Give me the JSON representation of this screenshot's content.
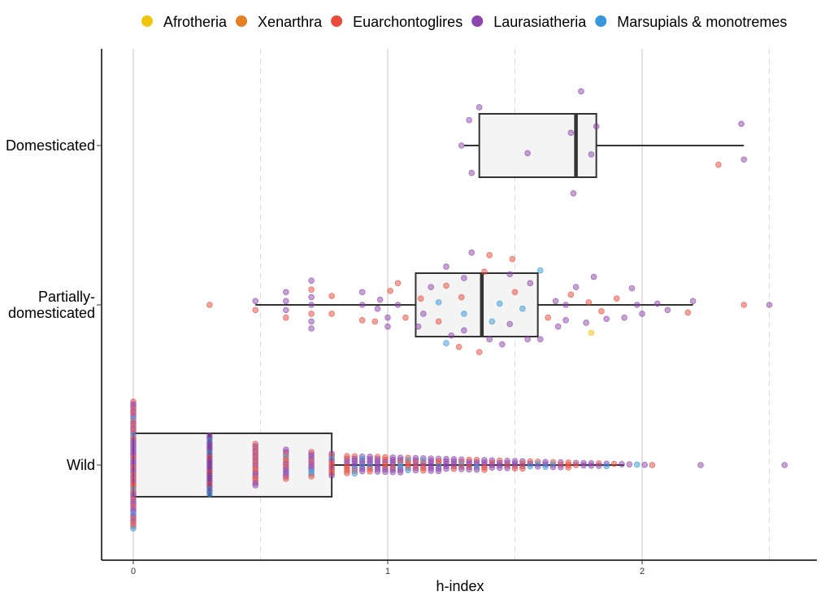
{
  "chart_data": {
    "type": "boxplot-jitter",
    "xlabel": "h-index",
    "ylabel": "",
    "xlim": [
      -0.13,
      2.7
    ],
    "x_ticks": [
      0,
      1,
      2
    ],
    "x_minor_ticks": [
      0.5,
      1.5,
      2.5
    ],
    "grid": true,
    "legend_position": "top",
    "categories": [
      "Domesticated",
      "Partially-\ndomesticated",
      "Wild"
    ],
    "category_lines": [
      [
        "Domesticated"
      ],
      [
        "Partially-",
        "domesticated"
      ],
      [
        "Wild"
      ]
    ],
    "legend": [
      {
        "name": "Afrotheria",
        "color": "#F1C40F"
      },
      {
        "name": "Xenarthra",
        "color": "#E67E22"
      },
      {
        "name": "Euarchontoglires",
        "color": "#E74C3C"
      },
      {
        "name": "Laurasiatheria",
        "color": "#8E44AD"
      },
      {
        "name": "Marsupials & monotremes",
        "color": "#3498DB"
      }
    ],
    "boxes": [
      {
        "category": "Domesticated",
        "whisker_low": 1.3,
        "q1": 1.36,
        "median": 1.74,
        "q3": 1.82,
        "whisker_high": 2.4
      },
      {
        "category": "Partially-\ndomesticated",
        "whisker_low": 0.48,
        "q1": 1.11,
        "median": 1.37,
        "q3": 1.59,
        "whisker_high": 2.2
      },
      {
        "category": "Wild",
        "whisker_low": 0,
        "q1": 0,
        "median": 0.3,
        "q3": 0.78,
        "whisker_high": 1.93
      }
    ],
    "points": [
      {
        "category": "Domesticated",
        "clade": "Laurasiatheria",
        "x": 1.29,
        "j": 0.0
      },
      {
        "category": "Domesticated",
        "clade": "Laurasiatheria",
        "x": 1.33,
        "j": 0.43
      },
      {
        "category": "Domesticated",
        "clade": "Laurasiatheria",
        "x": 1.32,
        "j": -0.4
      },
      {
        "category": "Domesticated",
        "clade": "Laurasiatheria",
        "x": 1.36,
        "j": -0.6
      },
      {
        "category": "Domesticated",
        "clade": "Laurasiatheria",
        "x": 1.55,
        "j": 0.12
      },
      {
        "category": "Domesticated",
        "clade": "Laurasiatheria",
        "x": 1.73,
        "j": 0.75
      },
      {
        "category": "Domesticated",
        "clade": "Laurasiatheria",
        "x": 1.72,
        "j": -0.2
      },
      {
        "category": "Domesticated",
        "clade": "Laurasiatheria",
        "x": 1.8,
        "j": 0.14
      },
      {
        "category": "Domesticated",
        "clade": "Laurasiatheria",
        "x": 1.82,
        "j": -0.3
      },
      {
        "category": "Domesticated",
        "clade": "Laurasiatheria",
        "x": 1.76,
        "j": -0.85
      },
      {
        "category": "Domesticated",
        "clade": "Euarchontoglires",
        "x": 2.3,
        "j": 0.3
      },
      {
        "category": "Domesticated",
        "clade": "Laurasiatheria",
        "x": 2.4,
        "j": 0.22
      },
      {
        "category": "Domesticated",
        "clade": "Laurasiatheria",
        "x": 2.39,
        "j": -0.34
      },
      {
        "category": "Partially-\ndomesticated",
        "clade": "Euarchontoglires",
        "x": 0.3,
        "j": 0.0
      },
      {
        "category": "Partially-\ndomesticated",
        "clade": "Euarchontoglires",
        "x": 0.48,
        "j": 0.08
      },
      {
        "category": "Partially-\ndomesticated",
        "clade": "Laurasiatheria",
        "x": 0.48,
        "j": -0.06
      },
      {
        "category": "Partially-\ndomesticated",
        "clade": "Euarchontoglires",
        "x": 0.6,
        "j": 0.2
      },
      {
        "category": "Partially-\ndomesticated",
        "clade": "Laurasiatheria",
        "x": 0.6,
        "j": 0.08
      },
      {
        "category": "Partially-\ndomesticated",
        "clade": "Laurasiatheria",
        "x": 0.6,
        "j": -0.06
      },
      {
        "category": "Partially-\ndomesticated",
        "clade": "Laurasiatheria",
        "x": 0.6,
        "j": -0.2
      },
      {
        "category": "Partially-\ndomesticated",
        "clade": "Laurasiatheria",
        "x": 0.7,
        "j": 0.37
      },
      {
        "category": "Partially-\ndomesticated",
        "clade": "Laurasiatheria",
        "x": 0.7,
        "j": 0.26
      },
      {
        "category": "Partially-\ndomesticated",
        "clade": "Euarchontoglires",
        "x": 0.7,
        "j": 0.14
      },
      {
        "category": "Partially-\ndomesticated",
        "clade": "Laurasiatheria",
        "x": 0.7,
        "j": 0.0
      },
      {
        "category": "Partially-\ndomesticated",
        "clade": "Laurasiatheria",
        "x": 0.7,
        "j": -0.12
      },
      {
        "category": "Partially-\ndomesticated",
        "clade": "Euarchontoglires",
        "x": 0.7,
        "j": -0.24
      },
      {
        "category": "Partially-\ndomesticated",
        "clade": "Laurasiatheria",
        "x": 0.7,
        "j": -0.38
      },
      {
        "category": "Partially-\ndomesticated",
        "clade": "Euarchontoglires",
        "x": 0.78,
        "j": 0.14
      },
      {
        "category": "Partially-\ndomesticated",
        "clade": "Euarchontoglires",
        "x": 0.78,
        "j": -0.14
      },
      {
        "category": "Partially-\ndomesticated",
        "clade": "Euarchontoglires",
        "x": 0.9,
        "j": 0.24
      },
      {
        "category": "Partially-\ndomesticated",
        "clade": "Laurasiatheria",
        "x": 0.9,
        "j": 0.0
      },
      {
        "category": "Partially-\ndomesticated",
        "clade": "Laurasiatheria",
        "x": 0.9,
        "j": -0.2
      },
      {
        "category": "Partially-\ndomesticated",
        "clade": "Euarchontoglires",
        "x": 0.95,
        "j": 0.26
      },
      {
        "category": "Partially-\ndomesticated",
        "clade": "Laurasiatheria",
        "x": 0.96,
        "j": 0.06
      },
      {
        "category": "Partially-\ndomesticated",
        "clade": "Laurasiatheria",
        "x": 0.97,
        "j": -0.08
      },
      {
        "category": "Partially-\ndomesticated",
        "clade": "Laurasiatheria",
        "x": 1.0,
        "j": 0.34
      },
      {
        "category": "Partially-\ndomesticated",
        "clade": "Laurasiatheria",
        "x": 1.0,
        "j": 0.2
      },
      {
        "category": "Partially-\ndomesticated",
        "clade": "Euarchontoglires",
        "x": 1.01,
        "j": -0.22
      },
      {
        "category": "Partially-\ndomesticated",
        "clade": "Laurasiatheria",
        "x": 1.04,
        "j": 0.0
      },
      {
        "category": "Partially-\ndomesticated",
        "clade": "Euarchontoglires",
        "x": 1.07,
        "j": 0.2
      },
      {
        "category": "Partially-\ndomesticated",
        "clade": "Euarchontoglires",
        "x": 1.04,
        "j": -0.34
      },
      {
        "category": "Partially-\ndomesticated",
        "clade": "Laurasiatheria",
        "x": 1.12,
        "j": 0.34
      },
      {
        "category": "Partially-\ndomesticated",
        "clade": "Laurasiatheria",
        "x": 1.14,
        "j": 0.14
      },
      {
        "category": "Partially-\ndomesticated",
        "clade": "Euarchontoglires",
        "x": 1.13,
        "j": -0.1
      },
      {
        "category": "Partially-\ndomesticated",
        "clade": "Laurasiatheria",
        "x": 1.17,
        "j": -0.28
      },
      {
        "category": "Partially-\ndomesticated",
        "clade": "Marsupials & monotremes",
        "x": 1.23,
        "j": 0.6
      },
      {
        "category": "Partially-\ndomesticated",
        "clade": "Laurasiatheria",
        "x": 1.25,
        "j": 0.48
      },
      {
        "category": "Partially-\ndomesticated",
        "clade": "Euarchontoglires",
        "x": 1.2,
        "j": 0.26
      },
      {
        "category": "Partially-\ndomesticated",
        "clade": "Marsupials & monotremes",
        "x": 1.2,
        "j": -0.04
      },
      {
        "category": "Partially-\ndomesticated",
        "clade": "Euarchontoglires",
        "x": 1.23,
        "j": -0.3
      },
      {
        "category": "Partially-\ndomesticated",
        "clade": "Laurasiatheria",
        "x": 1.23,
        "j": -0.6
      },
      {
        "category": "Partially-\ndomesticated",
        "clade": "Euarchontoglires",
        "x": 1.28,
        "j": 0.66
      },
      {
        "category": "Partially-\ndomesticated",
        "clade": "Laurasiatheria",
        "x": 1.3,
        "j": 0.4
      },
      {
        "category": "Partially-\ndomesticated",
        "clade": "Marsupials & monotremes",
        "x": 1.3,
        "j": 0.14
      },
      {
        "category": "Partially-\ndomesticated",
        "clade": "Euarchontoglires",
        "x": 1.29,
        "j": -0.12
      },
      {
        "category": "Partially-\ndomesticated",
        "clade": "Laurasiatheria",
        "x": 1.3,
        "j": -0.42
      },
      {
        "category": "Partially-\ndomesticated",
        "clade": "Laurasiatheria",
        "x": 1.33,
        "j": -0.82
      },
      {
        "category": "Partially-\ndomesticated",
        "clade": "Euarchontoglires",
        "x": 1.36,
        "j": 0.74
      },
      {
        "category": "Partially-\ndomesticated",
        "clade": "Laurasiatheria",
        "x": 1.4,
        "j": 0.54
      },
      {
        "category": "Partially-\ndomesticated",
        "clade": "Marsupials & monotremes",
        "x": 1.41,
        "j": 0.26
      },
      {
        "category": "Partially-\ndomesticated",
        "clade": "Marsupials & monotremes",
        "x": 1.44,
        "j": -0.02
      },
      {
        "category": "Partially-\ndomesticated",
        "clade": "Euarchontoglires",
        "x": 1.38,
        "j": -0.52
      },
      {
        "category": "Partially-\ndomesticated",
        "clade": "Euarchontoglires",
        "x": 1.4,
        "j": -0.78
      },
      {
        "category": "Partially-\ndomesticated",
        "clade": "Laurasiatheria",
        "x": 1.45,
        "j": 0.62
      },
      {
        "category": "Partially-\ndomesticated",
        "clade": "Laurasiatheria",
        "x": 1.48,
        "j": 0.3
      },
      {
        "category": "Partially-\ndomesticated",
        "clade": "Euarchontoglires",
        "x": 1.5,
        "j": -0.2
      },
      {
        "category": "Partially-\ndomesticated",
        "clade": "Laurasiatheria",
        "x": 1.48,
        "j": -0.48
      },
      {
        "category": "Partially-\ndomesticated",
        "clade": "Euarchontoglires",
        "x": 1.49,
        "j": -0.72
      },
      {
        "category": "Partially-\ndomesticated",
        "clade": "Laurasiatheria",
        "x": 1.55,
        "j": 0.54
      },
      {
        "category": "Partially-\ndomesticated",
        "clade": "Marsupials & monotremes",
        "x": 1.53,
        "j": 0.06
      },
      {
        "category": "Partially-\ndomesticated",
        "clade": "Laurasiatheria",
        "x": 1.56,
        "j": -0.34
      },
      {
        "category": "Partially-\ndomesticated",
        "clade": "Laurasiatheria",
        "x": 1.6,
        "j": 0.54
      },
      {
        "category": "Partially-\ndomesticated",
        "clade": "Marsupials & monotremes",
        "x": 1.6,
        "j": -0.54
      },
      {
        "category": "Partially-\ndomesticated",
        "clade": "Euarchontoglires",
        "x": 1.63,
        "j": 0.2
      },
      {
        "category": "Partially-\ndomesticated",
        "clade": "Laurasiatheria",
        "x": 1.66,
        "j": -0.06
      },
      {
        "category": "Partially-\ndomesticated",
        "clade": "Laurasiatheria",
        "x": 1.67,
        "j": 0.34
      },
      {
        "category": "Partially-\ndomesticated",
        "clade": "Laurasiatheria",
        "x": 1.7,
        "j": 0.0
      },
      {
        "category": "Partially-\ndomesticated",
        "clade": "Euarchontoglires",
        "x": 1.72,
        "j": -0.16
      },
      {
        "category": "Partially-\ndomesticated",
        "clade": "Laurasiatheria",
        "x": 1.7,
        "j": 0.24
      },
      {
        "category": "Partially-\ndomesticated",
        "clade": "Laurasiatheria",
        "x": 1.74,
        "j": -0.28
      },
      {
        "category": "Partially-\ndomesticated",
        "clade": "Afrotheria",
        "x": 1.8,
        "j": 0.44
      },
      {
        "category": "Partially-\ndomesticated",
        "clade": "Laurasiatheria",
        "x": 1.78,
        "j": 0.28
      },
      {
        "category": "Partially-\ndomesticated",
        "clade": "Euarchontoglires",
        "x": 1.79,
        "j": -0.04
      },
      {
        "category": "Partially-\ndomesticated",
        "clade": "Laurasiatheria",
        "x": 1.81,
        "j": -0.44
      },
      {
        "category": "Partially-\ndomesticated",
        "clade": "Euarchontoglires",
        "x": 1.84,
        "j": 0.1
      },
      {
        "category": "Partially-\ndomesticated",
        "clade": "Laurasiatheria",
        "x": 1.86,
        "j": 0.22
      },
      {
        "category": "Partially-\ndomesticated",
        "clade": "Euarchontoglires",
        "x": 1.9,
        "j": -0.1
      },
      {
        "category": "Partially-\ndomesticated",
        "clade": "Laurasiatheria",
        "x": 1.93,
        "j": 0.2
      },
      {
        "category": "Partially-\ndomesticated",
        "clade": "Laurasiatheria",
        "x": 1.96,
        "j": -0.26
      },
      {
        "category": "Partially-\ndomesticated",
        "clade": "Laurasiatheria",
        "x": 1.98,
        "j": 0.0
      },
      {
        "category": "Partially-\ndomesticated",
        "clade": "Laurasiatheria",
        "x": 2.0,
        "j": 0.14
      },
      {
        "category": "Partially-\ndomesticated",
        "clade": "Laurasiatheria",
        "x": 2.06,
        "j": -0.02
      },
      {
        "category": "Partially-\ndomesticated",
        "clade": "Laurasiatheria",
        "x": 2.1,
        "j": 0.08
      },
      {
        "category": "Partially-\ndomesticated",
        "clade": "Euarchontoglires",
        "x": 2.18,
        "j": 0.12
      },
      {
        "category": "Partially-\ndomesticated",
        "clade": "Laurasiatheria",
        "x": 2.2,
        "j": -0.06
      },
      {
        "category": "Partially-\ndomesticated",
        "clade": "Euarchontoglires",
        "x": 2.4,
        "j": 0.0
      },
      {
        "category": "Partially-\ndomesticated",
        "clade": "Laurasiatheria",
        "x": 2.5,
        "j": 0.0
      },
      {
        "category": "Wild",
        "clade": "Laurasiatheria",
        "x": 2.23,
        "j": 0.0
      },
      {
        "category": "Wild",
        "clade": "Laurasiatheria",
        "x": 2.56,
        "j": 0.0
      }
    ],
    "wild_band": {
      "x_max": 2.04,
      "step": 0.03
    }
  }
}
